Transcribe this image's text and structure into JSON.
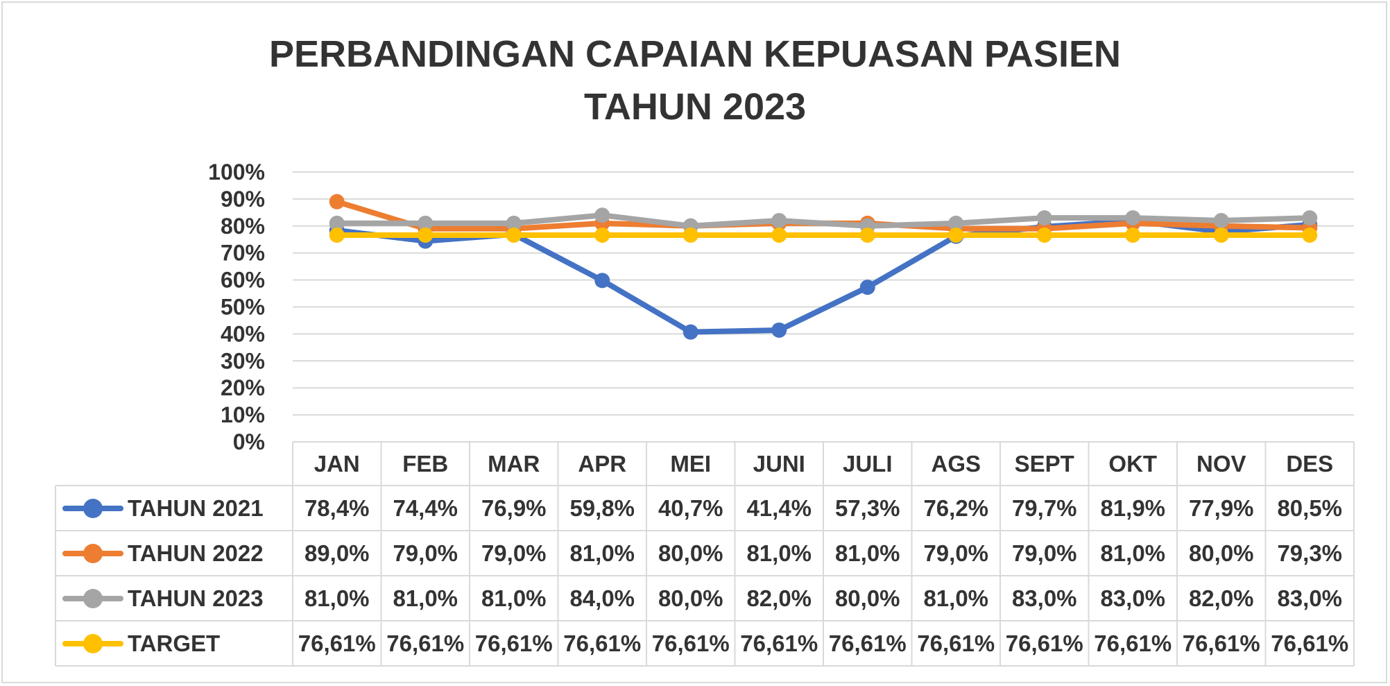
{
  "chart_data": {
    "type": "line",
    "title": [
      "PERBANDINGAN CAPAIAN KEPUASAN PASIEN",
      "TAHUN 2023"
    ],
    "categories": [
      "JAN",
      "FEB",
      "MAR",
      "APR",
      "MEI",
      "JUNI",
      "JULI",
      "AGS",
      "SEPT",
      "OKT",
      "NOV",
      "DES"
    ],
    "ylim": [
      0,
      100
    ],
    "yticks": [
      "100%",
      "90%",
      "80%",
      "70%",
      "60%",
      "50%",
      "40%",
      "30%",
      "20%",
      "10%",
      "0%"
    ],
    "grid": true,
    "legend": "data-table",
    "series": [
      {
        "name": "TAHUN 2021",
        "color": "#4472c4",
        "values": [
          78.4,
          74.4,
          76.9,
          59.8,
          40.7,
          41.4,
          57.3,
          76.2,
          79.7,
          81.9,
          77.9,
          80.5
        ],
        "labels": [
          "78,4%",
          "74,4%",
          "76,9%",
          "59,8%",
          "40,7%",
          "41,4%",
          "57,3%",
          "76,2%",
          "79,7%",
          "81,9%",
          "77,9%",
          "80,5%"
        ]
      },
      {
        "name": "TAHUN 2022",
        "color": "#ed7d31",
        "values": [
          89.0,
          79.0,
          79.0,
          81.0,
          80.0,
          81.0,
          81.0,
          79.0,
          79.0,
          81.0,
          80.0,
          79.3
        ],
        "labels": [
          "89,0%",
          "79,0%",
          "79,0%",
          "81,0%",
          "80,0%",
          "81,0%",
          "81,0%",
          "79,0%",
          "79,0%",
          "81,0%",
          "80,0%",
          "79,3%"
        ]
      },
      {
        "name": "TAHUN 2023",
        "color": "#a5a5a5",
        "values": [
          81.0,
          81.0,
          81.0,
          84.0,
          80.0,
          82.0,
          80.0,
          81.0,
          83.0,
          83.0,
          82.0,
          83.0
        ],
        "labels": [
          "81,0%",
          "81,0%",
          "81,0%",
          "84,0%",
          "80,0%",
          "82,0%",
          "80,0%",
          "81,0%",
          "83,0%",
          "83,0%",
          "82,0%",
          "83,0%"
        ]
      },
      {
        "name": "TARGET",
        "color": "#ffc000",
        "values": [
          76.61,
          76.61,
          76.61,
          76.61,
          76.61,
          76.61,
          76.61,
          76.61,
          76.61,
          76.61,
          76.61,
          76.61
        ],
        "labels": [
          "76,61%",
          "76,61%",
          "76,61%",
          "76,61%",
          "76,61%",
          "76,61%",
          "76,61%",
          "76,61%",
          "76,61%",
          "76,61%",
          "76,61%",
          "76,61%"
        ]
      }
    ]
  }
}
